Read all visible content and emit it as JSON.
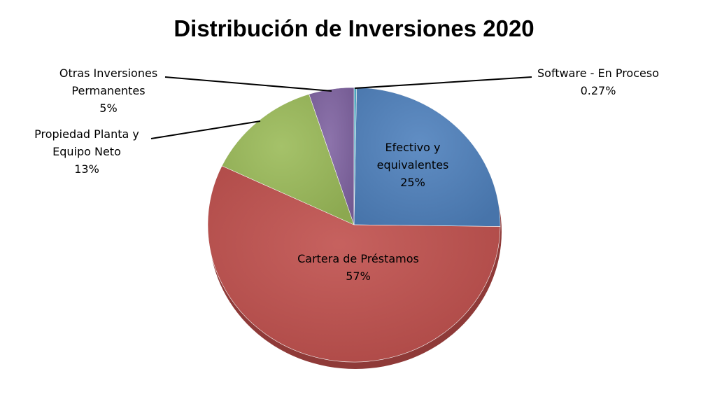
{
  "chart_data": {
    "type": "pie",
    "title": "Distribución de Inversiones 2020",
    "slices": [
      {
        "label": "Efectivo y equivalentes",
        "value": 25,
        "value_label": "25%",
        "color": "#4F81BD",
        "label_lines": [
          "Efectivo y",
          "equivalentes",
          "25%"
        ],
        "label_inside": true
      },
      {
        "label": "Cartera de Préstamos",
        "value": 57,
        "value_label": "57%",
        "color": "#C0504D",
        "label_lines": [
          "Cartera de Préstamos",
          "57%"
        ],
        "label_inside": true
      },
      {
        "label": "Propiedad Planta y Equipo Neto",
        "value": 13,
        "value_label": "13%",
        "color": "#9BBB59",
        "label_lines": [
          "Propiedad Planta y",
          "Equipo Neto",
          "13%"
        ],
        "label_inside": false
      },
      {
        "label": "Otras Inversiones Permanentes",
        "value": 5,
        "value_label": "5%",
        "color": "#8064A2",
        "label_lines": [
          "Otras Inversiones",
          "Permanentes",
          "5%"
        ],
        "label_inside": false
      },
      {
        "label": "Software - En Proceso",
        "value": 0.27,
        "value_label": "0.27%",
        "color": "#4BACC6",
        "label_lines": [
          "Software - En Proceso",
          "0.27%"
        ],
        "label_inside": false
      }
    ],
    "legend": "none"
  }
}
